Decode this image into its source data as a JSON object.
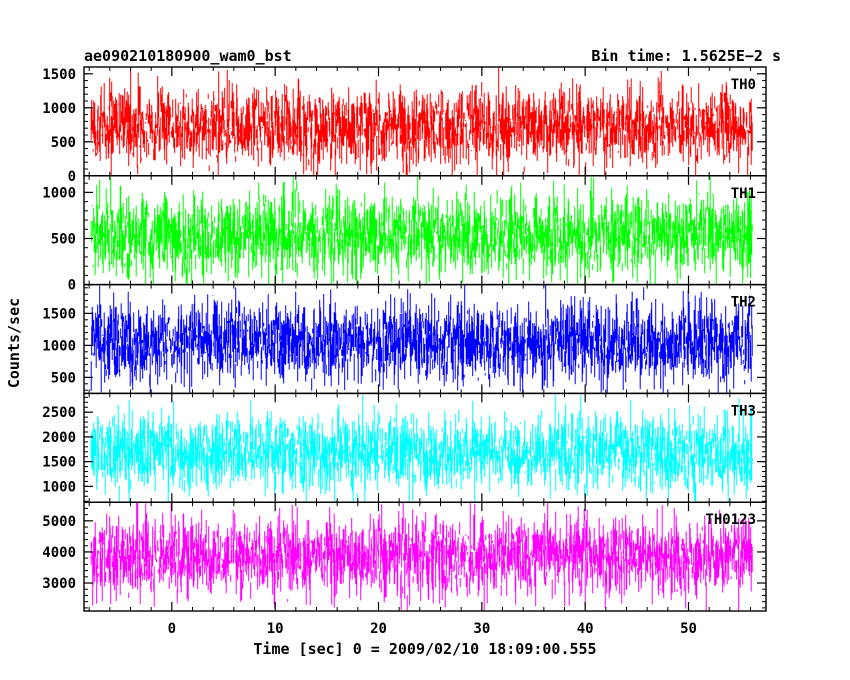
{
  "chart_data": {
    "type": "line",
    "header": {
      "left_title": "ae090210180900_wam0_bst",
      "right_title": "Bin time: 1.5625E−2 s"
    },
    "xlabel": "Time [sec] 0 = 2009/02/10 18:09:00.555",
    "ylabel": "Counts/sec",
    "xlim": [
      -8.5,
      57.5
    ],
    "data_x_range": [
      -7.8,
      56.2
    ],
    "x_ticks": [
      0,
      10,
      20,
      30,
      40,
      50
    ],
    "x_tick_labels": [
      "0",
      "10",
      "20",
      "30",
      "40",
      "50"
    ],
    "grid": false,
    "panels": [
      {
        "label": "TH0",
        "color": "#ff0000",
        "ylim": [
          0,
          1600
        ],
        "y_ticks": [
          0,
          500,
          1000,
          1500
        ],
        "y_tick_labels": [
          "0",
          "500",
          "1000",
          "1500"
        ],
        "mean": 720,
        "typical_range": [
          150,
          1300
        ],
        "extremes": [
          0,
          1600
        ]
      },
      {
        "label": "TH1",
        "color": "#00ff00",
        "ylim": [
          0,
          1180
        ],
        "y_ticks": [
          0,
          500,
          1000
        ],
        "y_tick_labels": [
          "0",
          "500",
          "1000"
        ],
        "mean": 550,
        "typical_range": [
          100,
          1000
        ],
        "extremes": [
          0,
          1180
        ]
      },
      {
        "label": "TH2",
        "color": "#0000ff",
        "ylim": [
          250,
          1950
        ],
        "y_ticks": [
          500,
          1000,
          1500
        ],
        "y_tick_labels": [
          "500",
          "1000",
          "1500"
        ],
        "mean": 1050,
        "typical_range": [
          400,
          1650
        ],
        "extremes": [
          250,
          1950
        ]
      },
      {
        "label": "TH3",
        "color": "#00ffff",
        "ylim": [
          680,
          2880
        ],
        "y_ticks": [
          1000,
          1500,
          2000,
          2500
        ],
        "y_tick_labels": [
          "1000",
          "1500",
          "2000",
          "2500"
        ],
        "mean": 1700,
        "typical_range": [
          900,
          2500
        ],
        "extremes": [
          680,
          2880
        ]
      },
      {
        "label": "TH0123",
        "color": "#ff00ff",
        "ylim": [
          2100,
          5600
        ],
        "y_ticks": [
          3000,
          4000,
          5000
        ],
        "y_tick_labels": [
          "3000",
          "4000",
          "5000"
        ],
        "mean": 3850,
        "typical_range": [
          2600,
          5100
        ],
        "extremes": [
          2100,
          5600
        ]
      }
    ]
  }
}
